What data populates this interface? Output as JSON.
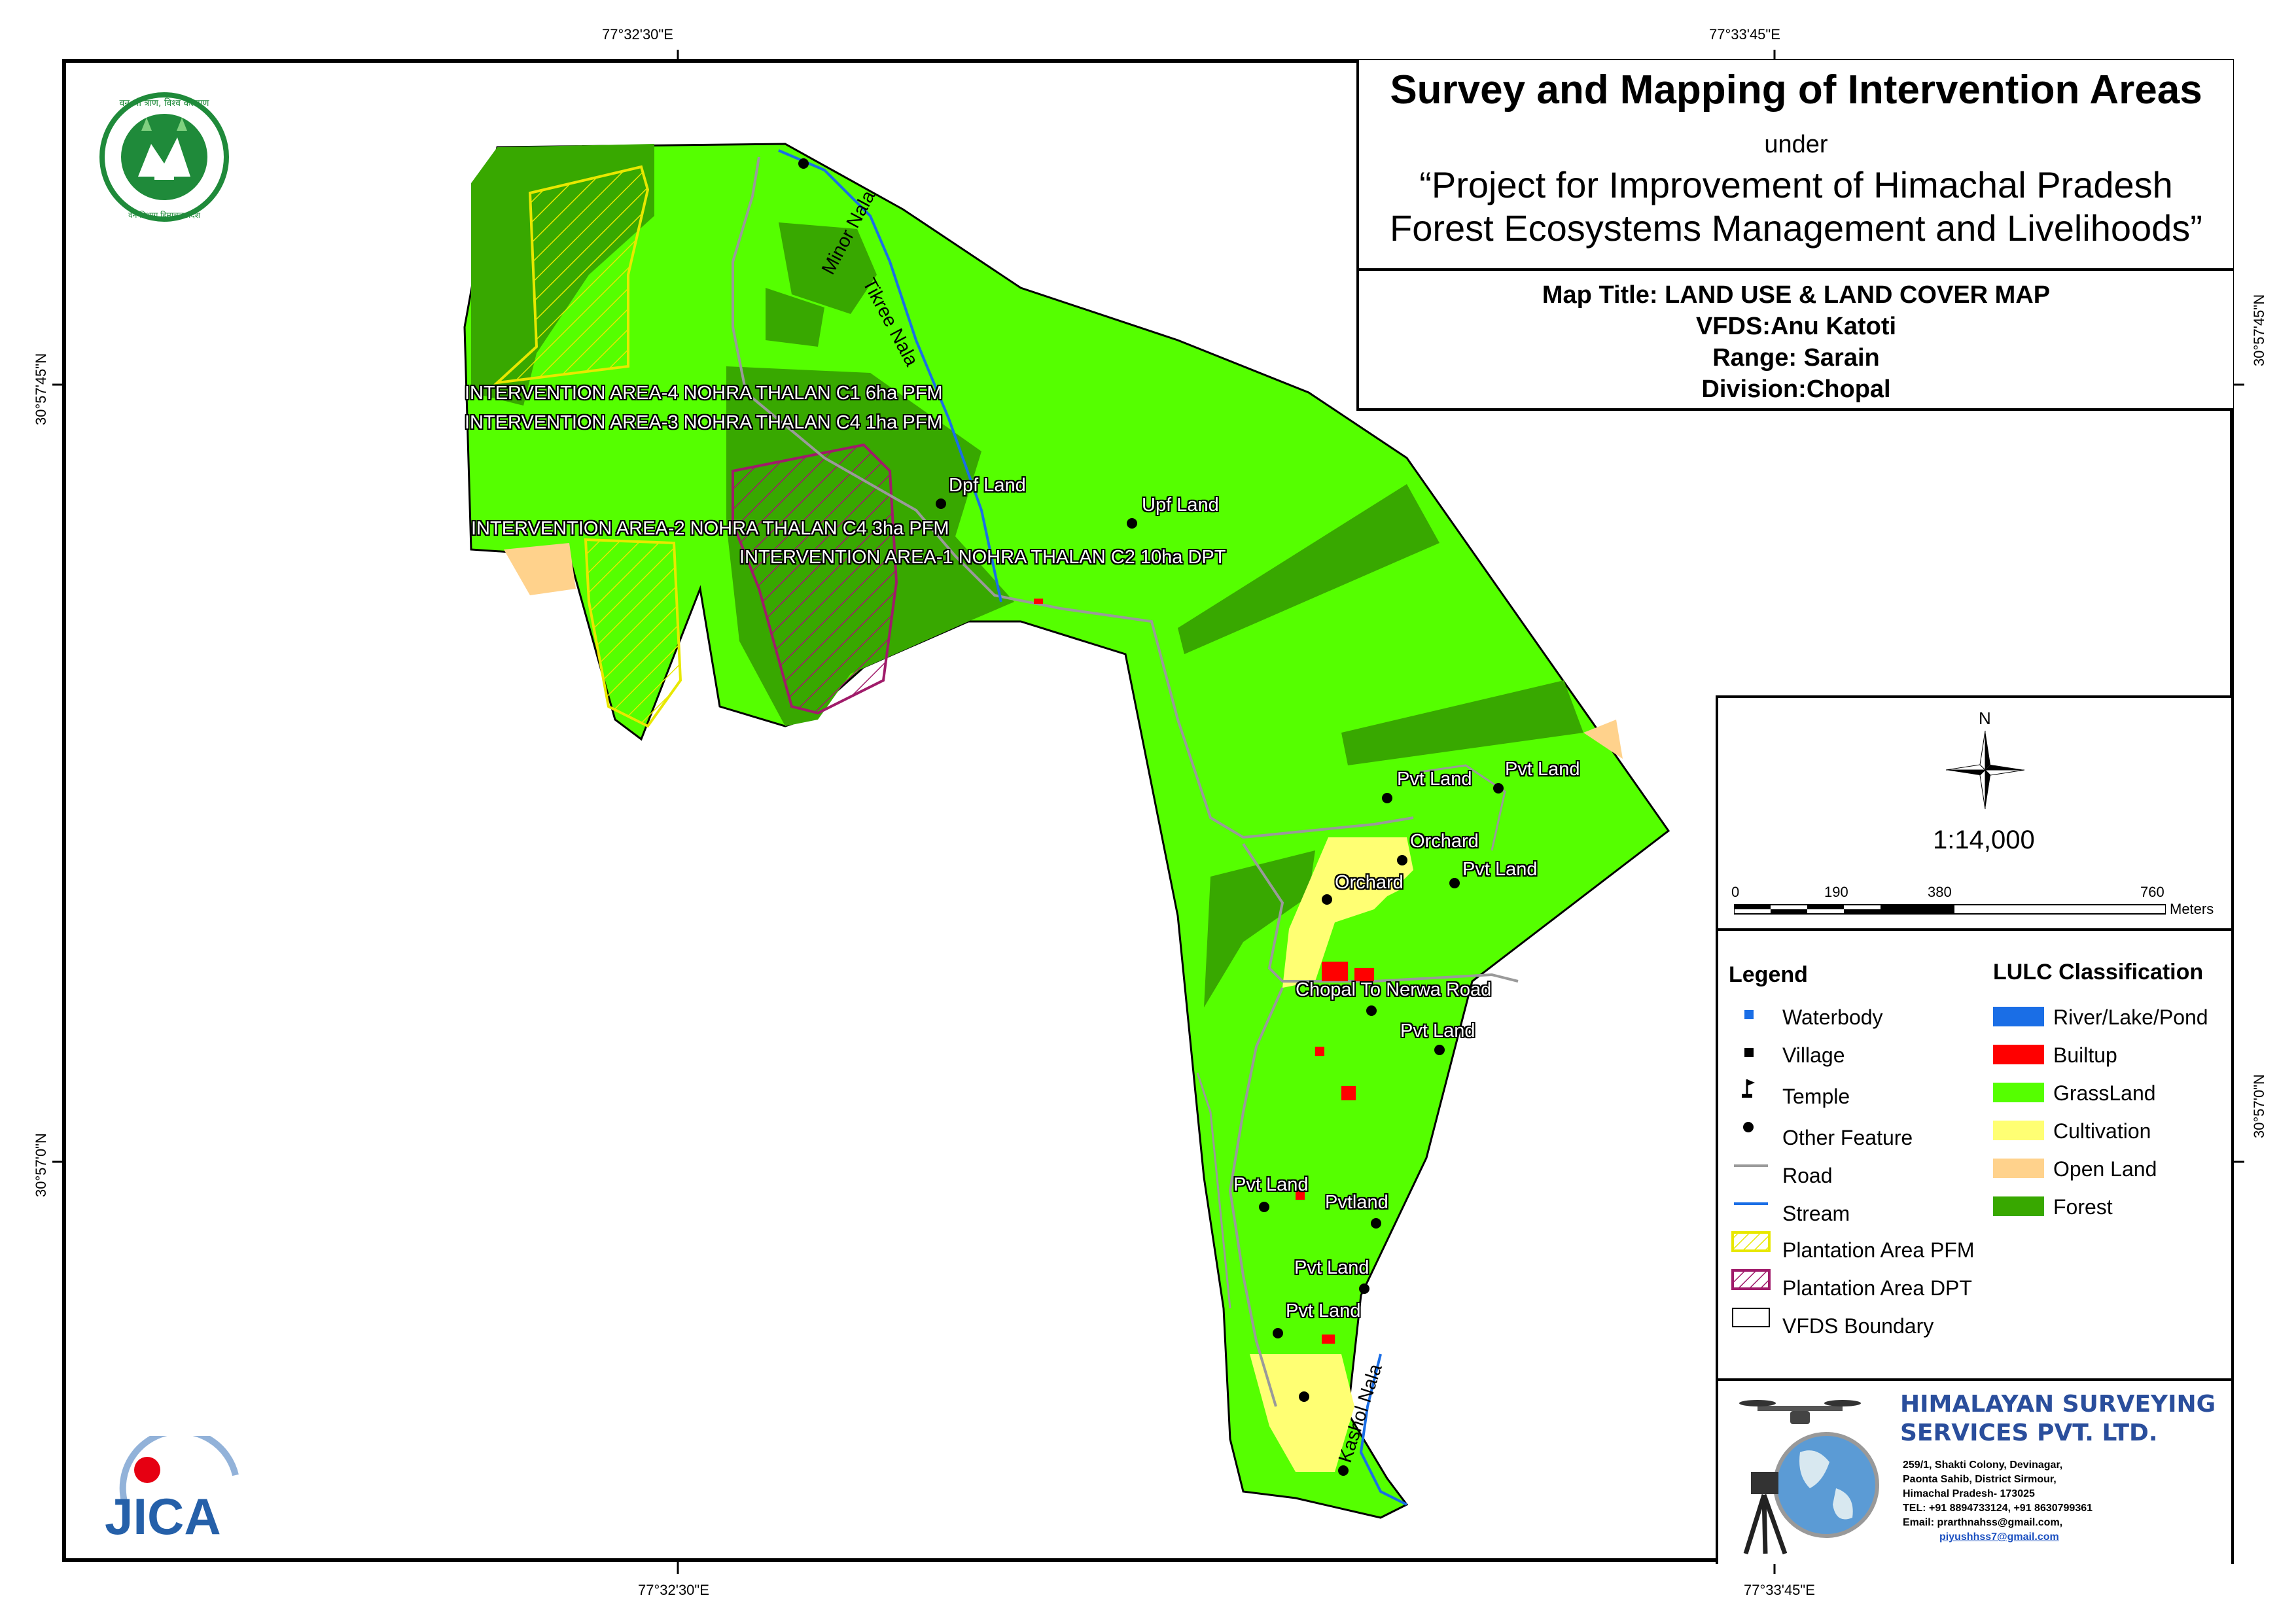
{
  "title": {
    "main": "Survey and Mapping of Intervention Areas",
    "under": "under",
    "project_line1": "“Project for Improvement of Himachal Pradesh",
    "project_line2": "Forest Ecosystems Management and Livelihoods”",
    "map_title": "Map Title: LAND USE & LAND COVER MAP",
    "vfds": "VFDS:Anu Katoti",
    "range": "Range: Sarain",
    "division": "Division:Chopal"
  },
  "coordinates": {
    "top_left": "77°32'30\"E",
    "top_right": "77°33'45\"E",
    "bottom_left": "77°32'30\"E",
    "bottom_right": "77°33'45\"E",
    "left_upper": "30°57'45\"N",
    "left_lower": "30°57'0\"N",
    "right_upper": "30°57'45\"N",
    "right_lower": "30°57'0\"N"
  },
  "north_label": "N",
  "scale": {
    "ratio": "1:14,000",
    "ticks": [
      "0",
      "190",
      "380",
      "760"
    ],
    "unit": "Meters"
  },
  "legend": {
    "title": "Legend",
    "items": [
      {
        "label": "Waterbody",
        "icon": "waterbody-icon"
      },
      {
        "label": "Village",
        "icon": "village-icon"
      },
      {
        "label": "Temple",
        "icon": "temple-flag-icon"
      },
      {
        "label": "Other Feature",
        "icon": "point-icon"
      },
      {
        "label": "Road",
        "icon": "road-line-icon"
      },
      {
        "label": "Stream",
        "icon": "stream-line-icon"
      },
      {
        "label": "Plantation Area PFM",
        "icon": "hatch-yellow-icon"
      },
      {
        "label": "Plantation Area DPT",
        "icon": "hatch-magenta-icon"
      },
      {
        "label": "VFDS Boundary",
        "icon": "boundary-icon"
      }
    ]
  },
  "lulc": {
    "title": "LULC Classification",
    "classes": [
      {
        "label": "River/Lake/Pond",
        "color": "#1a6ee6"
      },
      {
        "label": "Builtup",
        "color": "#ff0000"
      },
      {
        "label": "GrassLand",
        "color": "#55ff00"
      },
      {
        "label": "Cultivation",
        "color": "#ffff73"
      },
      {
        "label": "Open Land",
        "color": "#ffd28c"
      },
      {
        "label": "Forest",
        "color": "#38a800"
      }
    ]
  },
  "map_labels": {
    "ia4": "INTERVENTION AREA-4 NOHRA THALAN  C1 6ha PFM",
    "ia3": "INTERVENTION AREA-3 NOHRA THALAN C4 1ha PFM",
    "ia2": "INTERVENTION AREA-2 NOHRA THALAN C4 3ha PFM",
    "ia1": "INTERVENTION AREA-1 NOHRA THALAN C2 10ha DPT",
    "dpf": "Dpf Land",
    "upf": "Upf Land",
    "minor_nala": "Minor Nala",
    "tikree_nala": "Tikree Nala",
    "pvt1": "Pvt Land",
    "pvt2": "Pvt Land",
    "orchard1": "Orchard",
    "orchard2": "Orchard",
    "pvt3": "Pvt Land",
    "road": "Chopal To Nerwa Road",
    "pvt4": "Pvt Land",
    "pvt5": "Pvt Land",
    "pvtland": "Pvtland",
    "pvt6": "Pvt Land",
    "pvt7": "Pvt Land",
    "kashol_nala": "Kashol Nala"
  },
  "company": {
    "name_line1": "HIMALAYAN SURVEYING",
    "name_line2": "SERVICES PVT. LTD.",
    "addr1": "259/1, Shakti Colony, Devinagar,",
    "addr2": "Paonta Sahib, District Sirmour,",
    "addr3": "Himachal Pradesh- 173025",
    "phone": "TEL: +91 8894733124, +91 8630799361",
    "email1": "Email: prarthnahss@gmail.com,",
    "email2": "piyushhss7@gmail.com"
  },
  "logos": {
    "hp_forest_text": "वन श्री त्राण, विश्व कल्याण",
    "hp_forest_bottom": "वन विभाग हिमाचल प्रदेश",
    "jica": "JICA"
  }
}
